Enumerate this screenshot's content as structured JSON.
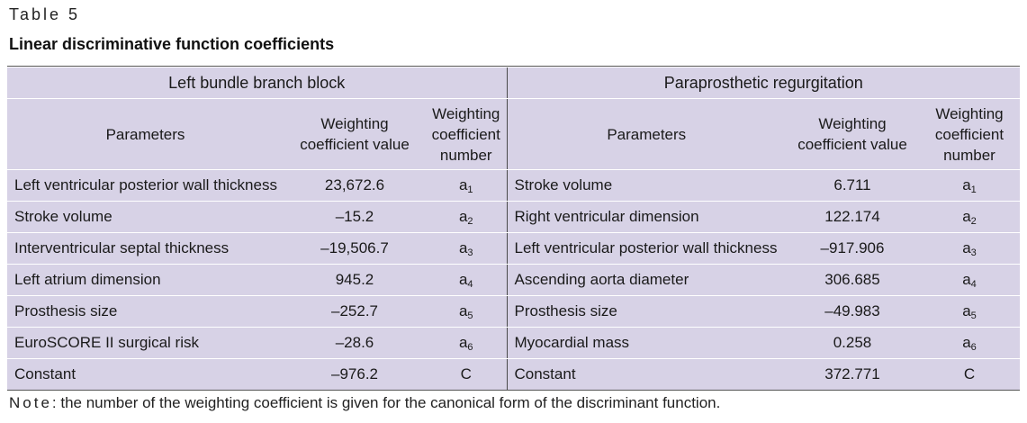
{
  "caption": "Table 5",
  "title": "Linear discriminative function coefficients",
  "groups": [
    "Left bundle branch block",
    "Paraprosthetic regurgitation"
  ],
  "headers": {
    "parameters": "Parameters",
    "value": "Weighting coefficient value",
    "number": "Weighting coefficient number"
  },
  "left_rows": [
    {
      "param": "Left ventricular posterior wall thickness",
      "value": "23,672.6",
      "num": "a",
      "sub": "1"
    },
    {
      "param": "Stroke volume",
      "value": "–15.2",
      "num": "a",
      "sub": "2"
    },
    {
      "param": "Interventricular septal thickness",
      "value": "–19,506.7",
      "num": "a",
      "sub": "3"
    },
    {
      "param": "Left atrium dimension",
      "value": "945.2",
      "num": "a",
      "sub": "4"
    },
    {
      "param": "Prosthesis size",
      "value": "–252.7",
      "num": "a",
      "sub": "5"
    },
    {
      "param": "EuroSCORE II surgical risk",
      "value": "–28.6",
      "num": "a",
      "sub": "6"
    },
    {
      "param": "Constant",
      "value": "–976.2",
      "num": "C",
      "sub": ""
    }
  ],
  "right_rows": [
    {
      "param": "Stroke volume",
      "value": "6.711",
      "num": "a",
      "sub": "1"
    },
    {
      "param": "Right ventricular dimension",
      "value": "122.174",
      "num": "a",
      "sub": "2"
    },
    {
      "param": "Left ventricular posterior wall thickness",
      "value": "–917.906",
      "num": "a",
      "sub": "3"
    },
    {
      "param": "Ascending aorta diameter",
      "value": "306.685",
      "num": "a",
      "sub": "4"
    },
    {
      "param": "Prosthesis size",
      "value": "–49.983",
      "num": "a",
      "sub": "5"
    },
    {
      "param": "Myocardial mass",
      "value": "0.258",
      "num": "a",
      "sub": "6"
    },
    {
      "param": "Constant",
      "value": "372.771",
      "num": "C",
      "sub": ""
    }
  ],
  "note": {
    "lead": "Note",
    "text": ": the number of the weighting coefficient is given for the canonical form of the discriminant function."
  }
}
